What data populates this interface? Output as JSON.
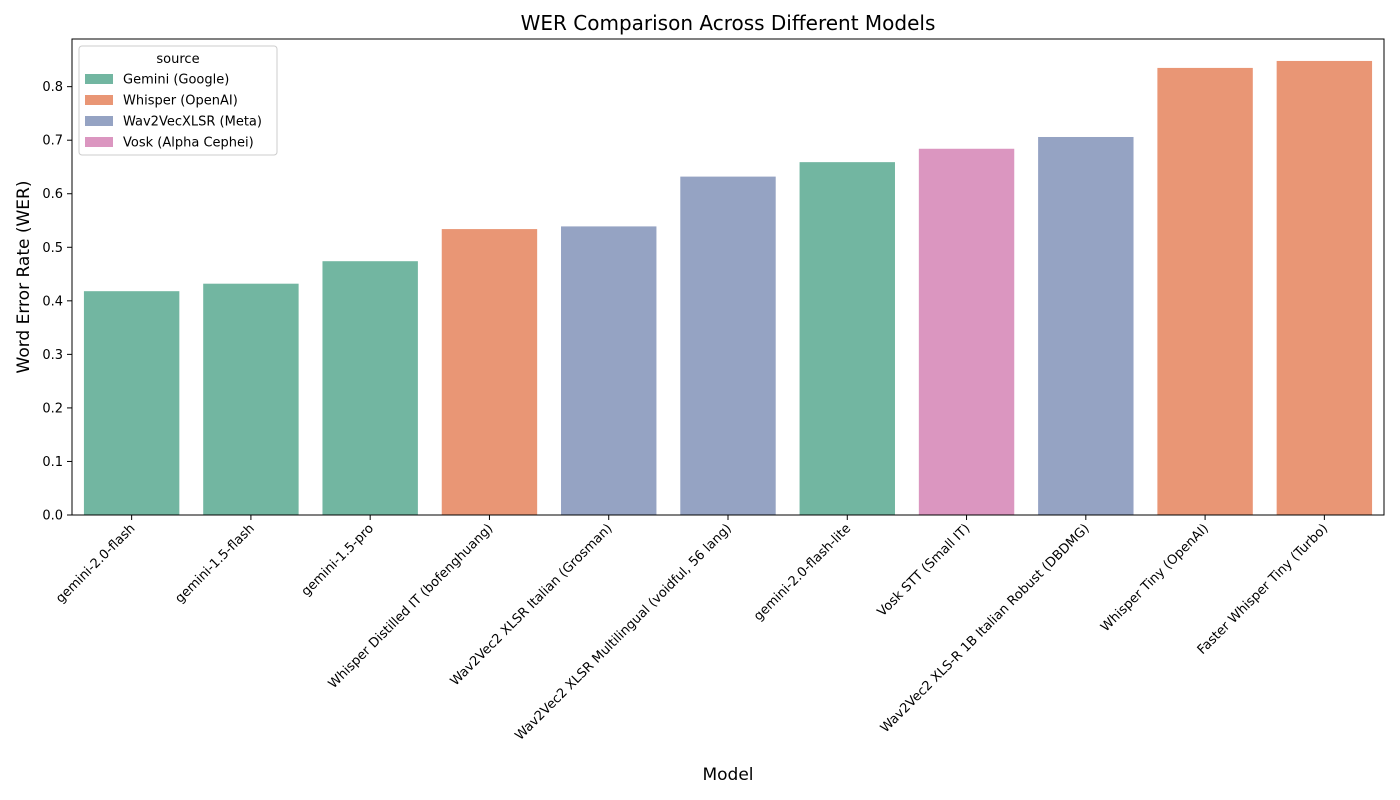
{
  "chart_data": {
    "type": "bar",
    "title": "WER Comparison Across Different Models",
    "xlabel": "Model",
    "ylabel": "Word Error Rate (WER)",
    "ylim": [
      0,
      0.889
    ],
    "yticks": [
      "0.0",
      "0.1",
      "0.2",
      "0.3",
      "0.4",
      "0.5",
      "0.6",
      "0.7",
      "0.8"
    ],
    "grid": false,
    "legend": {
      "title": "source",
      "placement": "top-left",
      "entries": [
        {
          "label": "Gemini (Google)",
          "color": "#72b6a1"
        },
        {
          "label": "Whisper (OpenAI)",
          "color": "#e99675"
        },
        {
          "label": "Wav2VecXLSR (Meta)",
          "color": "#95a3c3"
        },
        {
          "label": "Vosk (Alpha Cephei)",
          "color": "#db96c0"
        }
      ]
    },
    "categories": [
      "gemini-2.0-flash",
      "gemini-1.5-flash",
      "gemini-1.5-pro",
      "Whisper Distilled IT (bofenghuang)",
      "Wav2Vec2 XLSR Italian (Grosman)",
      "Wav2Vec2 XLSR Multilingual (voidful, 56 lang)",
      "gemini-2.0-flash-lite",
      "Vosk STT (Small IT)",
      "Wav2Vec2 XLS-R 1B Italian Robust (DBDMG)",
      "Whisper Tiny (OpenAI)",
      "Faster Whisper Tiny (Turbo)"
    ],
    "values": [
      0.418,
      0.432,
      0.474,
      0.534,
      0.539,
      0.632,
      0.659,
      0.684,
      0.706,
      0.835,
      0.848
    ],
    "source_index": [
      0,
      0,
      0,
      1,
      2,
      2,
      0,
      3,
      2,
      1,
      1
    ]
  }
}
